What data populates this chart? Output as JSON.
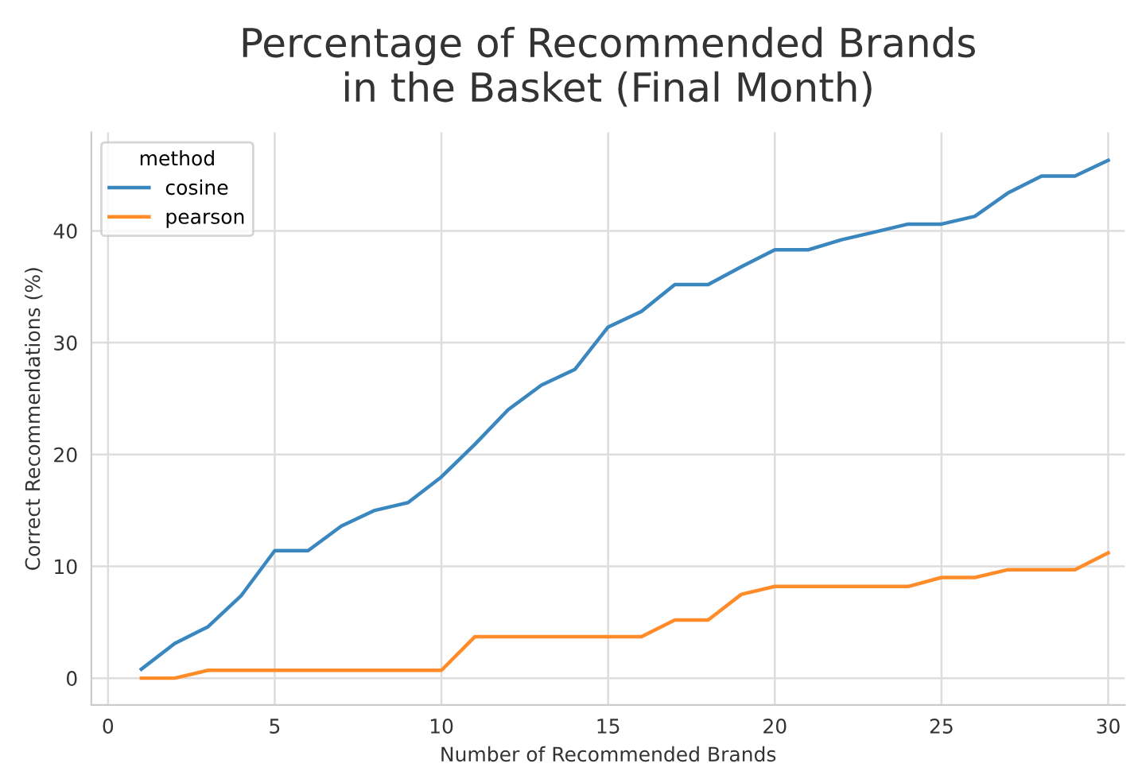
{
  "chart_data": {
    "type": "line",
    "title": "Percentage of Recommended Brands\nin the Basket (Final Month)",
    "xlabel": "Number of Recommended Brands",
    "ylabel": "Correct Recommendations (%)",
    "legend_title": "method",
    "x": [
      1,
      2,
      3,
      4,
      5,
      6,
      7,
      8,
      9,
      10,
      11,
      12,
      13,
      14,
      15,
      16,
      17,
      18,
      19,
      20,
      21,
      22,
      23,
      24,
      25,
      26,
      27,
      28,
      29,
      30
    ],
    "series": [
      {
        "name": "cosine",
        "color": "#3a87c0",
        "values": [
          0.8,
          3.1,
          4.6,
          7.4,
          11.4,
          11.4,
          13.6,
          15.0,
          15.7,
          18.0,
          20.9,
          24.0,
          26.2,
          27.6,
          31.4,
          32.8,
          35.2,
          35.2,
          36.8,
          38.3,
          38.3,
          39.2,
          39.9,
          40.6,
          40.6,
          41.3,
          43.4,
          44.9,
          44.9,
          46.3
        ]
      },
      {
        "name": "pearson",
        "color": "#ff8c28",
        "values": [
          0,
          0,
          0.7,
          0.7,
          0.7,
          0.7,
          0.7,
          0.7,
          0.7,
          0.7,
          3.7,
          3.7,
          3.7,
          3.7,
          3.7,
          3.7,
          5.2,
          5.2,
          7.5,
          8.2,
          8.2,
          8.2,
          8.2,
          8.2,
          9.0,
          9.0,
          9.7,
          9.7,
          9.7,
          11.2
        ]
      }
    ],
    "xlim": [
      -0.5,
      30.5
    ],
    "ylim": [
      -2.4,
      48.8
    ],
    "xticks": [
      0,
      5,
      10,
      15,
      20,
      25,
      30
    ],
    "yticks": [
      0,
      10,
      20,
      30,
      40
    ],
    "grid": true,
    "legend": "top left",
    "line_style": "solid",
    "marker": "none"
  }
}
